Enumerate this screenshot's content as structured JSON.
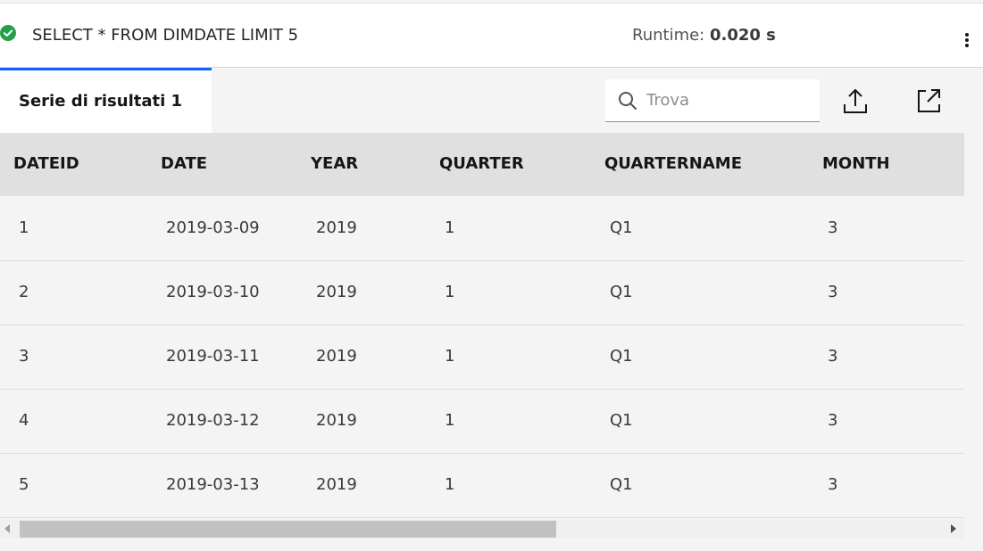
{
  "query": {
    "status_icon": "success-check-icon",
    "status_color": "#24a148",
    "sql": "SELECT * FROM DIMDATE LIMIT 5",
    "runtime_label": "Runtime:",
    "runtime_value": "0.020 s",
    "overflow_icon": "overflow-menu-vertical-icon"
  },
  "results": {
    "tab_label": "Serie di risultati 1",
    "accent_color": "#0f62fe",
    "search": {
      "placeholder": "Trova",
      "value": "",
      "icon": "search-icon"
    },
    "tools": {
      "export_icon": "upload-icon",
      "open_icon": "launch-icon"
    }
  },
  "table": {
    "columns": [
      "DATEID",
      "DATE",
      "YEAR",
      "QUARTER",
      "QUARTERNAME",
      "MONTH"
    ],
    "rows": [
      [
        "1",
        "2019-03-09",
        "2019",
        "1",
        "Q1",
        "3"
      ],
      [
        "2",
        "2019-03-10",
        "2019",
        "1",
        "Q1",
        "3"
      ],
      [
        "3",
        "2019-03-11",
        "2019",
        "1",
        "Q1",
        "3"
      ],
      [
        "4",
        "2019-03-12",
        "2019",
        "1",
        "Q1",
        "3"
      ],
      [
        "5",
        "2019-03-13",
        "2019",
        "1",
        "Q1",
        "3"
      ]
    ]
  }
}
